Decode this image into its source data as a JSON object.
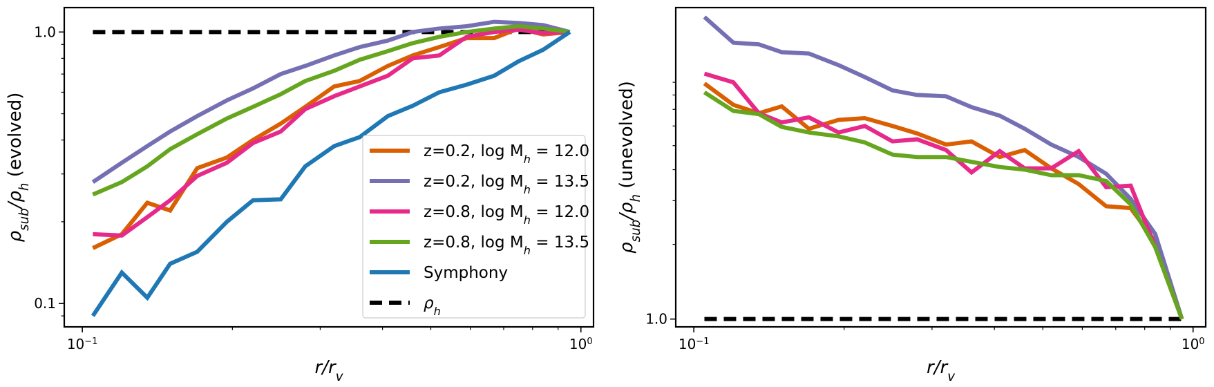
{
  "chart_data": [
    {
      "type": "line",
      "xscale": "log",
      "yscale": "log",
      "xlim": [
        0.092,
        1.06
      ],
      "ylim": [
        0.082,
        1.23
      ],
      "xlabel": "r/r_v",
      "ylabel": "ρ_sub/ρ_h (evolved)",
      "xtick_labels": [
        {
          "value": 0.1,
          "label": "10",
          "exp": "−1"
        },
        {
          "value": 1.0,
          "label": "10",
          "exp": "0"
        }
      ],
      "ytick_labels": [
        {
          "value": 0.1,
          "label": "0.1"
        },
        {
          "value": 1.0,
          "label": "1.0"
        }
      ],
      "legend": {
        "placement": "lower-right",
        "entries": [
          {
            "prefix": "z=0.2, log M",
            "sub": "h",
            "suffix": " = 12.0",
            "color": "#d95f02",
            "dash": false
          },
          {
            "prefix": "z=0.2, log M",
            "sub": "h",
            "suffix": " = 13.5",
            "color": "#7570b3",
            "dash": false
          },
          {
            "prefix": "z=0.8, log M",
            "sub": "h",
            "suffix": " = 12.0",
            "color": "#e7298a",
            "dash": false
          },
          {
            "prefix": "z=0.8, log M",
            "sub": "h",
            "suffix": " = 13.5",
            "color": "#66a61e",
            "dash": false
          },
          {
            "prefix": "Symphony",
            "sub": "",
            "suffix": "",
            "color": "#1f77b4",
            "dash": false
          },
          {
            "prefix": "ρ",
            "sub": "h",
            "suffix": "",
            "color": "#000000",
            "dash": true
          }
        ]
      },
      "reference_line": {
        "y": 1.0,
        "x": [
          0.105,
          0.95
        ],
        "color": "#000000",
        "dash": true
      },
      "series": [
        {
          "name": "z=0.2, log M_h = 12.0",
          "color": "#d95f02",
          "x": [
            0.105,
            0.12,
            0.135,
            0.15,
            0.17,
            0.195,
            0.22,
            0.25,
            0.28,
            0.32,
            0.36,
            0.41,
            0.46,
            0.52,
            0.59,
            0.67,
            0.75,
            0.84,
            0.95
          ],
          "y": [
            0.16,
            0.18,
            0.235,
            0.22,
            0.315,
            0.345,
            0.4,
            0.46,
            0.53,
            0.63,
            0.66,
            0.75,
            0.82,
            0.88,
            0.95,
            0.95,
            1.03,
            0.98,
            1.0
          ]
        },
        {
          "name": "z=0.2, log M_h = 13.5",
          "color": "#7570b3",
          "x": [
            0.105,
            0.12,
            0.135,
            0.15,
            0.17,
            0.195,
            0.22,
            0.25,
            0.28,
            0.32,
            0.36,
            0.41,
            0.46,
            0.52,
            0.59,
            0.67,
            0.75,
            0.84,
            0.95
          ],
          "y": [
            0.28,
            0.33,
            0.38,
            0.43,
            0.49,
            0.56,
            0.62,
            0.7,
            0.75,
            0.82,
            0.88,
            0.93,
            1.0,
            1.03,
            1.05,
            1.09,
            1.08,
            1.06,
            1.0
          ]
        },
        {
          "name": "z=0.8, log M_h = 12.0",
          "color": "#e7298a",
          "x": [
            0.105,
            0.12,
            0.135,
            0.15,
            0.17,
            0.195,
            0.22,
            0.25,
            0.28,
            0.32,
            0.36,
            0.41,
            0.46,
            0.52,
            0.59,
            0.67,
            0.75,
            0.84,
            0.95
          ],
          "y": [
            0.18,
            0.178,
            0.208,
            0.24,
            0.295,
            0.33,
            0.39,
            0.43,
            0.52,
            0.58,
            0.63,
            0.69,
            0.8,
            0.82,
            0.96,
            1.0,
            1.02,
            0.99,
            1.0
          ]
        },
        {
          "name": "z=0.8, log M_h = 13.5",
          "color": "#66a61e",
          "x": [
            0.105,
            0.12,
            0.135,
            0.15,
            0.17,
            0.195,
            0.22,
            0.25,
            0.28,
            0.32,
            0.36,
            0.41,
            0.46,
            0.52,
            0.59,
            0.67,
            0.75,
            0.84,
            0.95
          ],
          "y": [
            0.252,
            0.28,
            0.32,
            0.37,
            0.42,
            0.48,
            0.53,
            0.59,
            0.66,
            0.72,
            0.79,
            0.85,
            0.91,
            0.96,
            1.0,
            1.03,
            1.05,
            1.03,
            1.0
          ]
        },
        {
          "name": "Symphony",
          "color": "#1f77b4",
          "x": [
            0.105,
            0.12,
            0.135,
            0.15,
            0.17,
            0.195,
            0.22,
            0.25,
            0.28,
            0.32,
            0.36,
            0.41,
            0.46,
            0.52,
            0.59,
            0.67,
            0.75,
            0.84,
            0.95
          ],
          "y": [
            0.09,
            0.13,
            0.105,
            0.14,
            0.155,
            0.2,
            0.24,
            0.242,
            0.32,
            0.38,
            0.41,
            0.49,
            0.535,
            0.6,
            0.64,
            0.69,
            0.78,
            0.86,
            1.0
          ]
        }
      ]
    },
    {
      "type": "line",
      "xscale": "log",
      "yscale": "log",
      "xlim": [
        0.092,
        1.06
      ],
      "ylim": [
        0.93,
        18.0
      ],
      "xlabel": "r/r_v",
      "ylabel": "ρ_sub/ρ_h (unevolved)",
      "xtick_labels": [
        {
          "value": 0.1,
          "label": "10",
          "exp": "−1"
        },
        {
          "value": 1.0,
          "label": "10",
          "exp": "0"
        }
      ],
      "ytick_labels": [
        {
          "value": 1.0,
          "label": "1.0"
        }
      ],
      "reference_line": {
        "y": 1.0,
        "x": [
          0.105,
          0.95
        ],
        "color": "#000000",
        "dash": true
      },
      "series": [
        {
          "name": "z=0.2, log M_h = 12.0",
          "color": "#d95f02",
          "x": [
            0.105,
            0.12,
            0.135,
            0.15,
            0.17,
            0.195,
            0.22,
            0.25,
            0.28,
            0.32,
            0.36,
            0.41,
            0.46,
            0.52,
            0.59,
            0.67,
            0.75,
            0.84,
            0.95
          ],
          "y": [
            8.9,
            7.3,
            6.75,
            7.2,
            5.85,
            6.35,
            6.45,
            6.0,
            5.6,
            5.05,
            5.2,
            4.5,
            4.8,
            4.05,
            3.5,
            2.85,
            2.8,
            2.05,
            1.0
          ]
        },
        {
          "name": "z=0.2, log M_h = 13.5",
          "color": "#7570b3",
          "x": [
            0.105,
            0.12,
            0.135,
            0.15,
            0.17,
            0.195,
            0.22,
            0.25,
            0.28,
            0.32,
            0.36,
            0.41,
            0.46,
            0.52,
            0.59,
            0.67,
            0.75,
            0.84,
            0.95
          ],
          "y": [
            16.5,
            13.0,
            12.8,
            11.9,
            11.75,
            10.55,
            9.45,
            8.35,
            8.0,
            7.9,
            7.15,
            6.6,
            5.85,
            5.05,
            4.5,
            3.85,
            3.05,
            2.2,
            1.0
          ]
        },
        {
          "name": "z=0.8, log M_h = 12.0",
          "color": "#e7298a",
          "x": [
            0.105,
            0.12,
            0.135,
            0.15,
            0.17,
            0.195,
            0.22,
            0.25,
            0.28,
            0.32,
            0.36,
            0.41,
            0.46,
            0.52,
            0.59,
            0.67,
            0.75,
            0.84,
            0.95
          ],
          "y": [
            9.75,
            9.0,
            6.75,
            6.2,
            6.5,
            5.65,
            6.0,
            5.2,
            5.3,
            4.8,
            3.9,
            4.75,
            4.05,
            4.05,
            4.75,
            3.4,
            3.45,
            1.95,
            1.0
          ]
        },
        {
          "name": "z=0.8, log M_h = 13.5",
          "color": "#66a61e",
          "x": [
            0.105,
            0.12,
            0.135,
            0.15,
            0.17,
            0.195,
            0.22,
            0.25,
            0.28,
            0.32,
            0.36,
            0.41,
            0.46,
            0.52,
            0.59,
            0.67,
            0.75,
            0.84,
            0.95
          ],
          "y": [
            8.2,
            6.9,
            6.7,
            5.95,
            5.65,
            5.45,
            5.15,
            4.6,
            4.5,
            4.5,
            4.3,
            4.1,
            4.0,
            3.8,
            3.8,
            3.6,
            2.9,
            1.95,
            1.0
          ]
        }
      ]
    }
  ]
}
